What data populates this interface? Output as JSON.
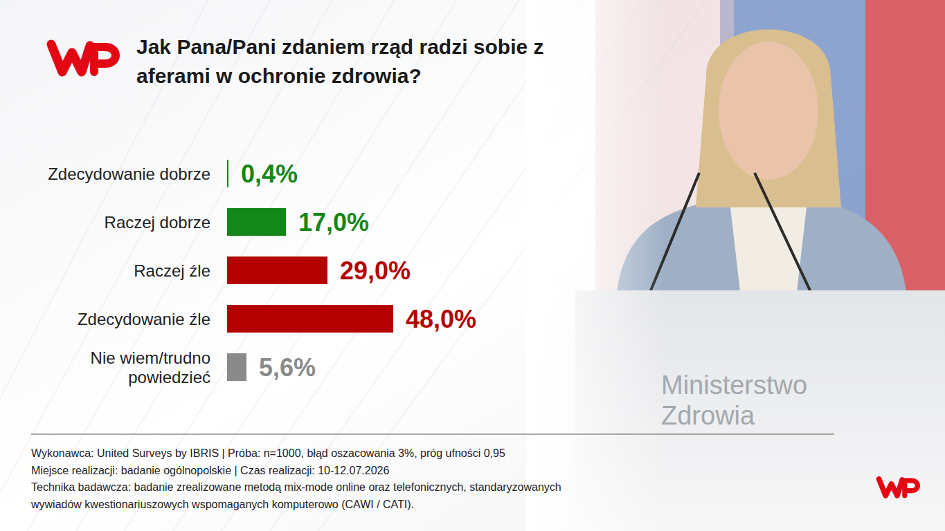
{
  "chart_data": {
    "type": "bar",
    "orientation": "horizontal",
    "title": "Jak Pana/Pani zdaniem rząd radzi sobie z aferami w ochronie zdrowia?",
    "categories": [
      "Zdecydowanie dobrze",
      "Raczej dobrze",
      "Raczej źle",
      "Zdecydowanie źle",
      "Nie wiem/trudno powiedzieć"
    ],
    "values": [
      0.4,
      17.0,
      29.0,
      48.0,
      5.6
    ],
    "value_labels": [
      "0,4%",
      "17,0%",
      "29,0%",
      "48,0%",
      "5,6%"
    ],
    "colors": [
      "#14871a",
      "#14871a",
      "#b50000",
      "#b50000",
      "#8a8a8a"
    ],
    "xlim": [
      0,
      100
    ],
    "tick_labels": false,
    "grid": false,
    "data_labels": true,
    "annotations": [
      "Wykonawca: United Surveys by IBRIS | Próba: n=1000, błąd oszacowania 3%, próg ufności 0,95",
      "Miejsce realizacji: badanie ogólnopolskie | Czas realizacji: 10-12.07.2026",
      "Technika badawcza: badanie zrealizowane metodą mix-mode online oraz telefonicznych, standaryzowanych",
      "wywiadów kwestionariuszowych wspomaganych komputerowo (CAWI / CATI).",
      "Ministerstwo Zdrowia"
    ]
  }
}
